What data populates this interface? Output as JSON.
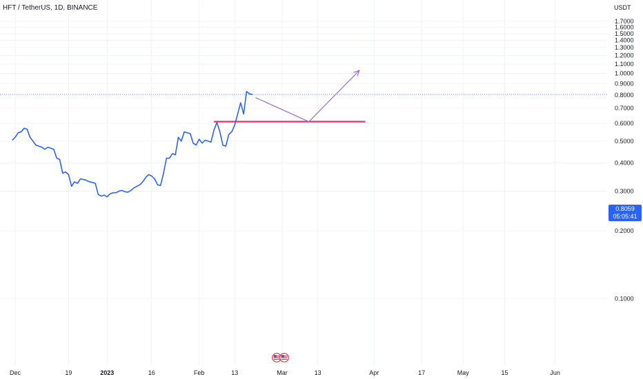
{
  "header": {
    "title": "HFT / TetherUS, 1D, BINANCE",
    "unit": "USDT"
  },
  "price_badge": {
    "price": "0.8059",
    "countdown": "05:05:41",
    "color": "#2962ff"
  },
  "colors": {
    "price_line": "#2962ff",
    "support_line": "#f0306a",
    "arrow": "#9b6fd6",
    "grid": "#f0f3fa"
  },
  "icons": [
    "us-flag-icon",
    "us-flag-icon"
  ],
  "chart_data": {
    "type": "line",
    "y_axis": {
      "scale": "log",
      "ticks": [
        "1.7000",
        "1.6000",
        "1.5000",
        "1.4000",
        "1.3000",
        "1.2000",
        "1.1000",
        "1.0000",
        "0.9000",
        "0.8000",
        "0.7000",
        "0.6000",
        "0.5000",
        "0.4000",
        "0.3000",
        "0.2000",
        "0.1000"
      ],
      "position": "right"
    },
    "x_axis": {
      "ticks": [
        {
          "label": "Dec",
          "date": "2022-12-01",
          "bold": false
        },
        {
          "label": "19",
          "date": "2022-12-19",
          "bold": false
        },
        {
          "label": "2023",
          "date": "2023-01-01",
          "bold": true
        },
        {
          "label": "16",
          "date": "2023-01-16",
          "bold": false
        },
        {
          "label": "Feb",
          "date": "2023-02-01",
          "bold": false
        },
        {
          "label": "13",
          "date": "2023-02-13",
          "bold": false
        },
        {
          "label": "Mar",
          "date": "2023-03-01",
          "bold": false
        },
        {
          "label": "13",
          "date": "2023-03-13",
          "bold": false
        },
        {
          "label": "Apr",
          "date": "2023-04-01",
          "bold": false
        },
        {
          "label": "17",
          "date": "2023-04-17",
          "bold": false
        },
        {
          "label": "May",
          "date": "2023-05-01",
          "bold": false
        },
        {
          "label": "15",
          "date": "2023-05-15",
          "bold": false
        },
        {
          "label": "Jun",
          "date": "2023-06-01",
          "bold": false
        }
      ]
    },
    "grid": true,
    "series": [
      {
        "points": [
          [
            "2022-11-30",
            0.505
          ],
          [
            "2022-12-01",
            0.52
          ],
          [
            "2022-12-02",
            0.545
          ],
          [
            "2022-12-03",
            0.55
          ],
          [
            "2022-12-04",
            0.57
          ],
          [
            "2022-12-05",
            0.565
          ],
          [
            "2022-12-06",
            0.52
          ],
          [
            "2022-12-07",
            0.5
          ],
          [
            "2022-12-08",
            0.48
          ],
          [
            "2022-12-09",
            0.475
          ],
          [
            "2022-12-10",
            0.47
          ],
          [
            "2022-12-11",
            0.46
          ],
          [
            "2022-12-12",
            0.47
          ],
          [
            "2022-12-13",
            0.465
          ],
          [
            "2022-12-14",
            0.46
          ],
          [
            "2022-12-15",
            0.42
          ],
          [
            "2022-12-16",
            0.415
          ],
          [
            "2022-12-17",
            0.36
          ],
          [
            "2022-12-18",
            0.365
          ],
          [
            "2022-12-19",
            0.355
          ],
          [
            "2022-12-20",
            0.315
          ],
          [
            "2022-12-21",
            0.33
          ],
          [
            "2022-12-22",
            0.325
          ],
          [
            "2022-12-23",
            0.34
          ],
          [
            "2022-12-24",
            0.338
          ],
          [
            "2022-12-25",
            0.335
          ],
          [
            "2022-12-26",
            0.33
          ],
          [
            "2022-12-27",
            0.328
          ],
          [
            "2022-12-28",
            0.325
          ],
          [
            "2022-12-29",
            0.29
          ],
          [
            "2022-12-30",
            0.285
          ],
          [
            "2022-12-31",
            0.288
          ],
          [
            "2023-01-01",
            0.283
          ],
          [
            "2023-01-02",
            0.292
          ],
          [
            "2023-01-03",
            0.295
          ],
          [
            "2023-01-04",
            0.295
          ],
          [
            "2023-01-05",
            0.3
          ],
          [
            "2023-01-06",
            0.302
          ],
          [
            "2023-01-07",
            0.298
          ],
          [
            "2023-01-08",
            0.297
          ],
          [
            "2023-01-09",
            0.302
          ],
          [
            "2023-01-10",
            0.31
          ],
          [
            "2023-01-11",
            0.315
          ],
          [
            "2023-01-12",
            0.32
          ],
          [
            "2023-01-13",
            0.33
          ],
          [
            "2023-01-14",
            0.345
          ],
          [
            "2023-01-15",
            0.355
          ],
          [
            "2023-01-16",
            0.35
          ],
          [
            "2023-01-17",
            0.34
          ],
          [
            "2023-01-18",
            0.32
          ],
          [
            "2023-01-19",
            0.318
          ],
          [
            "2023-01-20",
            0.36
          ],
          [
            "2023-01-21",
            0.42
          ],
          [
            "2023-01-22",
            0.42
          ],
          [
            "2023-01-23",
            0.44
          ],
          [
            "2023-01-24",
            0.435
          ],
          [
            "2023-01-25",
            0.52
          ],
          [
            "2023-01-26",
            0.5
          ],
          [
            "2023-01-27",
            0.55
          ],
          [
            "2023-01-28",
            0.545
          ],
          [
            "2023-01-29",
            0.54
          ],
          [
            "2023-01-30",
            0.49
          ],
          [
            "2023-01-31",
            0.48
          ],
          [
            "2023-02-01",
            0.51
          ],
          [
            "2023-02-02",
            0.49
          ],
          [
            "2023-02-03",
            0.505
          ],
          [
            "2023-02-04",
            0.5
          ],
          [
            "2023-02-05",
            0.495
          ],
          [
            "2023-02-06",
            0.56
          ],
          [
            "2023-02-07",
            0.605
          ],
          [
            "2023-02-08",
            0.55
          ],
          [
            "2023-02-09",
            0.48
          ],
          [
            "2023-02-10",
            0.475
          ],
          [
            "2023-02-11",
            0.535
          ],
          [
            "2023-02-12",
            0.55
          ],
          [
            "2023-02-13",
            0.59
          ],
          [
            "2023-02-14",
            0.66
          ],
          [
            "2023-02-15",
            0.74
          ],
          [
            "2023-02-16",
            0.66
          ],
          [
            "2023-02-17",
            0.83
          ],
          [
            "2023-02-18",
            0.81
          ],
          [
            "2023-02-19",
            0.8059
          ]
        ]
      }
    ],
    "current_price": 0.8059,
    "annotations": {
      "support_level": {
        "y": 0.61,
        "x_start": "2023-02-06",
        "x_end": "2023-03-29"
      },
      "projection_arrow": [
        [
          "2023-02-20",
          0.78
        ],
        [
          "2023-03-10",
          0.61
        ],
        [
          "2023-03-27",
          1.03
        ]
      ]
    }
  }
}
